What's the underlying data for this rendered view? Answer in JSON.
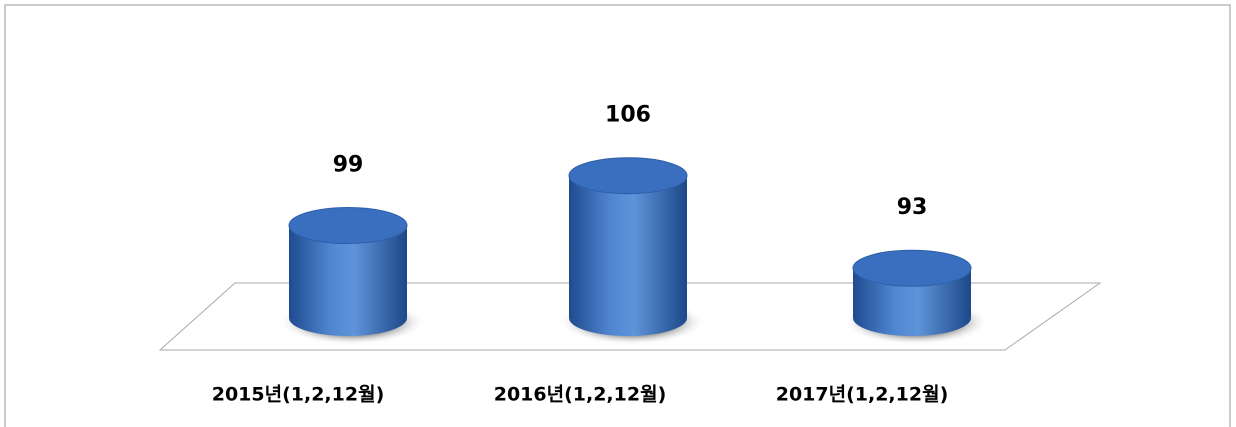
{
  "chart_data": {
    "type": "cylinder",
    "categories": [
      "2015년(1,2,12월)",
      "2016년(1,2,12월)",
      "2017년(1,2,12월)"
    ],
    "values": [
      99,
      106,
      93
    ],
    "color": "#3a6fbf",
    "ylim": [
      86,
      112
    ]
  }
}
